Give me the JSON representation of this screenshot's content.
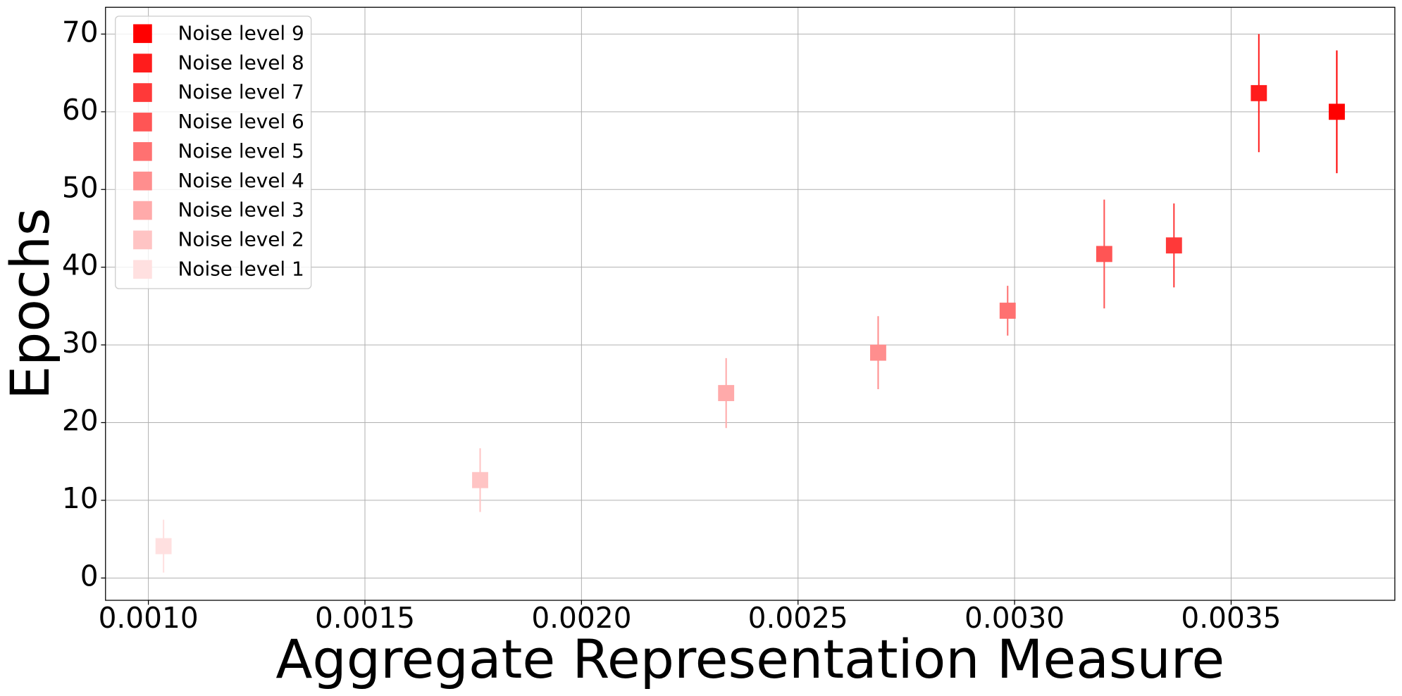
{
  "chart_data": {
    "type": "errorbar",
    "x_label": "Aggregate Representation Measure",
    "y_label": "Epochs",
    "xlim": [
      0.000901,
      0.003878
    ],
    "ylim": [
      -2.87,
      73.45
    ],
    "xticks": [
      {
        "value": 0.001,
        "label": "0.0010"
      },
      {
        "value": 0.0015,
        "label": "0.0015"
      },
      {
        "value": 0.002,
        "label": "0.0020"
      },
      {
        "value": 0.0025,
        "label": "0.0025"
      },
      {
        "value": 0.003,
        "label": "0.0030"
      },
      {
        "value": 0.0035,
        "label": "0.0035"
      }
    ],
    "yticks": [
      0,
      10,
      20,
      30,
      40,
      50,
      60,
      70
    ],
    "grid": true,
    "legend": "upper-left",
    "series": [
      {
        "name": "Noise level 1",
        "color": "#ffe0e0",
        "x": [
          0.001035
        ],
        "values": [
          4.1
        ],
        "errors": [
          3.4
        ]
      },
      {
        "name": "Noise level 2",
        "color": "#ffc4c4",
        "x": [
          0.001766
        ],
        "values": [
          12.6
        ],
        "errors": [
          4.1
        ]
      },
      {
        "name": "Noise level 3",
        "color": "#ffaaaa",
        "x": [
          0.002334
        ],
        "values": [
          23.8
        ],
        "errors": [
          4.5
        ]
      },
      {
        "name": "Noise level 4",
        "color": "#ff8e8e",
        "x": [
          0.002685
        ],
        "values": [
          29.0
        ],
        "errors": [
          4.7
        ]
      },
      {
        "name": "Noise level 5",
        "color": "#ff7171",
        "x": [
          0.002984
        ],
        "values": [
          34.4
        ],
        "errors": [
          3.2
        ]
      },
      {
        "name": "Noise level 6",
        "color": "#ff5555",
        "x": [
          0.003207
        ],
        "values": [
          41.7
        ],
        "errors": [
          7.0
        ]
      },
      {
        "name": "Noise level 7",
        "color": "#ff3939",
        "x": [
          0.003368
        ],
        "values": [
          42.8
        ],
        "errors": [
          5.4
        ]
      },
      {
        "name": "Noise level 8",
        "color": "#ff1c1c",
        "x": [
          0.003564
        ],
        "values": [
          62.4
        ],
        "errors": [
          7.6
        ]
      },
      {
        "name": "Noise level 9",
        "color": "#ff0000",
        "x": [
          0.003744
        ],
        "values": [
          60.0
        ],
        "errors": [
          7.9
        ]
      }
    ]
  }
}
